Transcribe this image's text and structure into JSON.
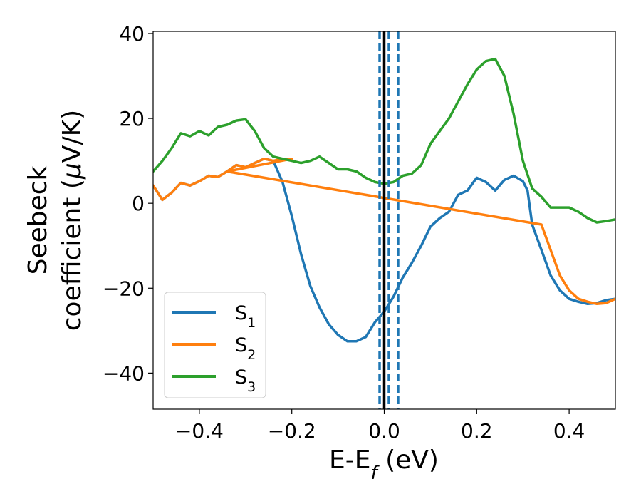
{
  "chart_data": {
    "type": "line",
    "xlabel": {
      "main": "E-E",
      "sub": "f",
      "unit": " (eV)"
    },
    "ylabel": {
      "line1": "Seebeck",
      "line2_text": "coefficient  (",
      "line2_mu": "μ",
      "line2_unit": "V/K)"
    },
    "xlim": [
      -0.5,
      0.5
    ],
    "ylim": [
      -48.5,
      40.5
    ],
    "x_ticks": [
      -0.4,
      -0.2,
      0.0,
      0.2,
      0.4
    ],
    "x_tick_labels": [
      "−0.4",
      "−0.2",
      "0.0",
      "0.2",
      "0.4"
    ],
    "y_ticks": [
      -40,
      -20,
      0,
      20,
      40
    ],
    "y_tick_labels": [
      "−40",
      "−20",
      "0",
      "20",
      "40"
    ],
    "grid": false,
    "legend_position": "lower-left",
    "vertical_lines": [
      {
        "x": 0.0,
        "style": "solid",
        "color": "#000000"
      },
      {
        "x": -0.01,
        "style": "dashed",
        "color": "#1f77b4"
      },
      {
        "x": 0.01,
        "style": "dashed",
        "color": "#1f77b4"
      },
      {
        "x": 0.03,
        "style": "dashed",
        "color": "#1f77b4"
      }
    ],
    "series": [
      {
        "name": "S",
        "sub": "1",
        "color": "#1f77b4",
        "x": [
          -0.5,
          -0.48,
          -0.46,
          -0.44,
          -0.42,
          -0.4,
          -0.38,
          -0.36,
          -0.34,
          -0.32,
          -0.3,
          -0.28,
          -0.26,
          -0.24,
          -0.22,
          -0.2,
          -0.18,
          -0.16,
          -0.14,
          -0.12,
          -0.1,
          -0.08,
          -0.06,
          -0.04,
          -0.02,
          0.0,
          0.02,
          0.04,
          0.06,
          0.08,
          0.1,
          0.12,
          0.14,
          0.16,
          0.18,
          0.2,
          0.22,
          0.24,
          0.26,
          0.28,
          0.3,
          0.31,
          0.32,
          0.34,
          0.36,
          0.38,
          0.4,
          0.42,
          0.44,
          0.46,
          0.48,
          0.5
        ],
        "y": [
          4.2,
          0.8,
          2.5,
          4.8,
          4.2,
          5.2,
          6.5,
          6.2,
          7.5,
          9.0,
          8.5,
          9.5,
          10.5,
          10.0,
          5.0,
          -3.0,
          -12.0,
          -19.5,
          -24.5,
          -28.5,
          -31.0,
          -32.5,
          -32.5,
          -31.5,
          -28.0,
          -25.5,
          -22.0,
          -17.5,
          -14.0,
          -10.0,
          -5.5,
          -3.5,
          -2.0,
          2.0,
          3.0,
          6.0,
          5.0,
          3.0,
          5.5,
          6.5,
          5.2,
          3.0,
          -5.0,
          -11.0,
          -17.0,
          -20.5,
          -22.5,
          -23.2,
          -23.7,
          -23.5,
          -22.8,
          -22.5
        ]
      },
      {
        "name": "S",
        "sub": "2",
        "color": "#ff7f0e",
        "x": [
          -0.5,
          -0.48,
          -0.46,
          -0.44,
          -0.42,
          -0.4,
          -0.38,
          -0.36,
          -0.34,
          -0.32,
          -0.3,
          -0.28,
          -0.26,
          -0.24,
          -0.22,
          -0.2,
          -0.34,
          0.34,
          0.36,
          0.38,
          0.4,
          0.42,
          0.44,
          0.46,
          0.48,
          0.5
        ],
        "y": [
          4.2,
          0.8,
          2.5,
          4.8,
          4.2,
          5.2,
          6.5,
          6.2,
          7.5,
          9.0,
          8.5,
          9.5,
          10.5,
          10.0,
          10.5,
          10.5,
          7.5,
          -5.0,
          -11.0,
          -17.0,
          -20.5,
          -22.5,
          -23.2,
          -23.7,
          -23.5,
          -22.5
        ]
      },
      {
        "name": "S",
        "sub": "3",
        "color": "#2ca02c",
        "x": [
          -0.5,
          -0.48,
          -0.46,
          -0.44,
          -0.42,
          -0.4,
          -0.38,
          -0.36,
          -0.34,
          -0.32,
          -0.3,
          -0.28,
          -0.26,
          -0.24,
          -0.22,
          -0.2,
          -0.18,
          -0.16,
          -0.14,
          -0.12,
          -0.1,
          -0.08,
          -0.06,
          -0.04,
          -0.02,
          0.0,
          0.02,
          0.04,
          0.06,
          0.08,
          0.1,
          0.12,
          0.14,
          0.16,
          0.18,
          0.2,
          0.22,
          0.24,
          0.26,
          0.28,
          0.3,
          0.32,
          0.34,
          0.36,
          0.38,
          0.4,
          0.42,
          0.44,
          0.46,
          0.48,
          0.5
        ],
        "y": [
          7.5,
          10.0,
          13.0,
          16.5,
          15.8,
          17.0,
          16.0,
          18.0,
          18.5,
          19.5,
          19.8,
          17.0,
          13.0,
          11.0,
          10.5,
          10.0,
          9.5,
          10.0,
          11.0,
          9.5,
          8.0,
          8.0,
          7.5,
          6.0,
          5.0,
          4.6,
          5.0,
          6.5,
          7.0,
          9.0,
          14.0,
          17.0,
          20.0,
          24.0,
          28.0,
          31.5,
          33.5,
          34.0,
          30.0,
          21.0,
          10.0,
          3.5,
          1.5,
          -1.0,
          -1.0,
          -1.0,
          -2.0,
          -3.5,
          -4.5,
          -4.2,
          -3.8
        ]
      }
    ]
  }
}
